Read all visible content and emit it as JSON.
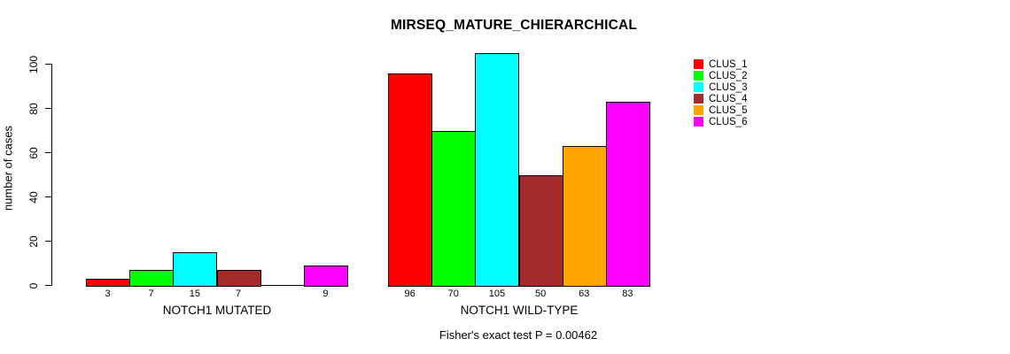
{
  "chart_data": {
    "type": "bar",
    "title": "MIRSEQ_MATURE_CHIERARCHICAL",
    "ylabel": "number of cases",
    "xlabel": "",
    "subtitle": "Fisher's exact test P = 0.00462",
    "ylim": [
      0,
      100
    ],
    "yticks": [
      0,
      20,
      40,
      60,
      80,
      100
    ],
    "grid": false,
    "legend_position": "right",
    "categories": [
      "NOTCH1 MUTATED",
      "NOTCH1 WILD-TYPE"
    ],
    "series": [
      {
        "name": "CLUS_1",
        "color": "#ff0000",
        "values": [
          3,
          96
        ]
      },
      {
        "name": "CLUS_2",
        "color": "#00ff00",
        "values": [
          7,
          70
        ]
      },
      {
        "name": "CLUS_3",
        "color": "#00ffff",
        "values": [
          15,
          105
        ]
      },
      {
        "name": "CLUS_4",
        "color": "#a52a2a",
        "values": [
          7,
          50
        ]
      },
      {
        "name": "CLUS_5",
        "color": "#ffa500",
        "values": [
          0,
          63
        ]
      },
      {
        "name": "CLUS_6",
        "color": "#ff00ff",
        "values": [
          9,
          83
        ]
      }
    ],
    "bar_labels": [
      [
        "3",
        "7",
        "15",
        "7",
        "",
        "9"
      ],
      [
        "96",
        "70",
        "105",
        "50",
        "63",
        "83"
      ]
    ]
  }
}
